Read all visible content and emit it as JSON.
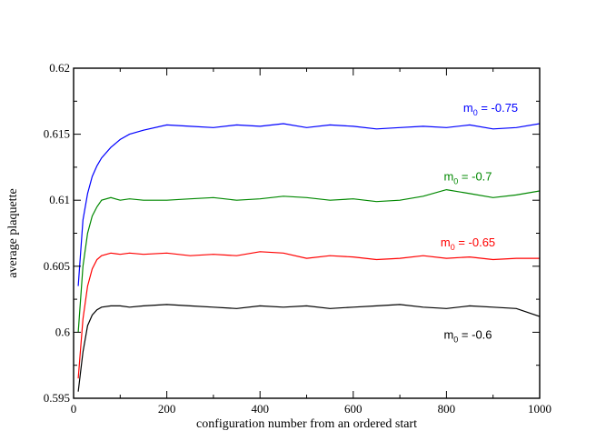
{
  "chart_data": {
    "type": "line",
    "xlabel": "configuration number from an ordered start",
    "ylabel": "average plaquette",
    "xlim": [
      0,
      1000
    ],
    "ylim": [
      0.595,
      0.62
    ],
    "xticks": [
      {
        "value": 0,
        "label": "0"
      },
      {
        "value": 200,
        "label": "200"
      },
      {
        "value": 400,
        "label": "400"
      },
      {
        "value": 600,
        "label": "600"
      },
      {
        "value": 800,
        "label": "800"
      },
      {
        "value": 1000,
        "label": "1000"
      }
    ],
    "yticks": [
      {
        "value": 0.595,
        "label": "0.595"
      },
      {
        "value": 0.6,
        "label": "0.6"
      },
      {
        "value": 0.605,
        "label": "0.605"
      },
      {
        "value": 0.61,
        "label": "0.61"
      },
      {
        "value": 0.615,
        "label": "0.615"
      },
      {
        "value": 0.62,
        "label": "0.62"
      }
    ],
    "grid": false,
    "series": [
      {
        "label_base": "m",
        "label_sub": "0",
        "label_rest": " = -0.75",
        "color": "#0000ff",
        "x": [
          10,
          20,
          30,
          40,
          50,
          60,
          80,
          100,
          120,
          150,
          200,
          250,
          300,
          350,
          400,
          450,
          500,
          550,
          600,
          650,
          700,
          750,
          800,
          850,
          900,
          950,
          1000
        ],
        "y": [
          0.6035,
          0.6085,
          0.6105,
          0.6118,
          0.6126,
          0.6132,
          0.614,
          0.6146,
          0.615,
          0.6153,
          0.6157,
          0.6156,
          0.6155,
          0.6157,
          0.6156,
          0.6158,
          0.6155,
          0.6157,
          0.6156,
          0.6154,
          0.6155,
          0.6156,
          0.6155,
          0.6157,
          0.6154,
          0.6155,
          0.6158
        ]
      },
      {
        "label_base": "m",
        "label_sub": "0",
        "label_rest": " = -0.7",
        "color": "#008800",
        "x": [
          10,
          20,
          30,
          40,
          50,
          60,
          80,
          100,
          120,
          150,
          200,
          250,
          300,
          350,
          400,
          450,
          500,
          550,
          600,
          650,
          700,
          750,
          800,
          850,
          900,
          950,
          1000
        ],
        "y": [
          0.6,
          0.605,
          0.6075,
          0.6088,
          0.6095,
          0.61,
          0.6102,
          0.61,
          0.6101,
          0.61,
          0.61,
          0.6101,
          0.6102,
          0.61,
          0.6101,
          0.6103,
          0.6102,
          0.61,
          0.6101,
          0.6099,
          0.61,
          0.6103,
          0.6108,
          0.6105,
          0.6102,
          0.6104,
          0.6107
        ]
      },
      {
        "label_base": "m",
        "label_sub": "0",
        "label_rest": " = -0.65",
        "color": "#ff0000",
        "x": [
          10,
          20,
          30,
          40,
          50,
          60,
          80,
          100,
          120,
          150,
          200,
          250,
          300,
          350,
          400,
          450,
          500,
          550,
          600,
          650,
          700,
          750,
          800,
          850,
          900,
          950,
          1000
        ],
        "y": [
          0.5965,
          0.601,
          0.6035,
          0.6048,
          0.6055,
          0.6058,
          0.606,
          0.6059,
          0.606,
          0.6059,
          0.606,
          0.6058,
          0.6059,
          0.6058,
          0.6061,
          0.606,
          0.6056,
          0.6058,
          0.6057,
          0.6055,
          0.6056,
          0.6058,
          0.6056,
          0.6057,
          0.6055,
          0.6056,
          0.6056
        ]
      },
      {
        "label_base": "m",
        "label_sub": "0",
        "label_rest": " = -0.6",
        "color": "#000000",
        "x": [
          10,
          20,
          30,
          40,
          50,
          60,
          80,
          100,
          120,
          150,
          200,
          250,
          300,
          350,
          400,
          450,
          500,
          550,
          600,
          650,
          700,
          750,
          800,
          850,
          900,
          950,
          1000
        ],
        "y": [
          0.5955,
          0.5985,
          0.6005,
          0.6013,
          0.6017,
          0.6019,
          0.602,
          0.602,
          0.6019,
          0.602,
          0.6021,
          0.602,
          0.6019,
          0.6018,
          0.602,
          0.6019,
          0.602,
          0.6018,
          0.6019,
          0.602,
          0.6021,
          0.6019,
          0.6018,
          0.602,
          0.6019,
          0.6018,
          0.6012
        ]
      }
    ]
  }
}
